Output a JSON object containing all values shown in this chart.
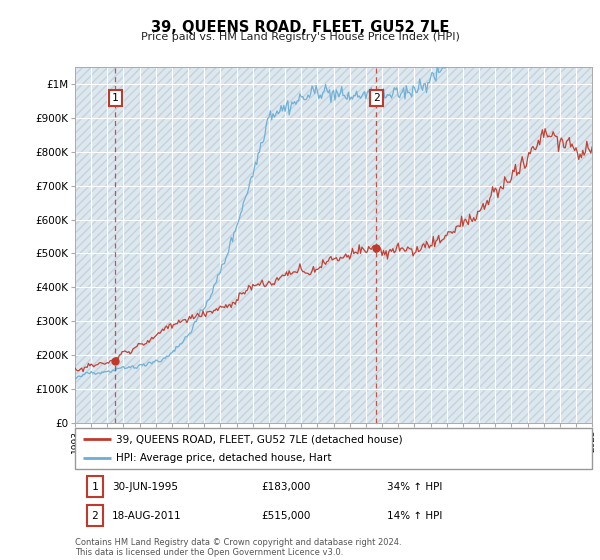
{
  "title": "39, QUEENS ROAD, FLEET, GU52 7LE",
  "subtitle": "Price paid vs. HM Land Registry's House Price Index (HPI)",
  "sale1_date": "30-JUN-1995",
  "sale1_price": 183000,
  "sale1_hpi": "34% ↑ HPI",
  "sale1_label": "1",
  "sale1_year": 1995.5,
  "sale2_date": "18-AUG-2011",
  "sale2_price": 515000,
  "sale2_hpi": "14% ↑ HPI",
  "sale2_label": "2",
  "sale2_year": 2011.63,
  "legend_property": "39, QUEENS ROAD, FLEET, GU52 7LE (detached house)",
  "legend_hpi": "HPI: Average price, detached house, Hart",
  "footer": "Contains HM Land Registry data © Crown copyright and database right 2024.\nThis data is licensed under the Open Government Licence v3.0.",
  "ylim": [
    0,
    1050000
  ],
  "yticks": [
    0,
    100000,
    200000,
    300000,
    400000,
    500000,
    600000,
    700000,
    800000,
    900000,
    1000000
  ],
  "ytick_labels": [
    "£0",
    "£100K",
    "£200K",
    "£300K",
    "£400K",
    "£500K",
    "£600K",
    "£700K",
    "£800K",
    "£900K",
    "£1M"
  ],
  "property_color": "#c0392b",
  "hpi_color": "#6baed6",
  "grid_color": "#c8d8e8",
  "vline_color": "#c0392b",
  "bg_color": "#dce8f0",
  "hatch_color": "#c8d0d8"
}
